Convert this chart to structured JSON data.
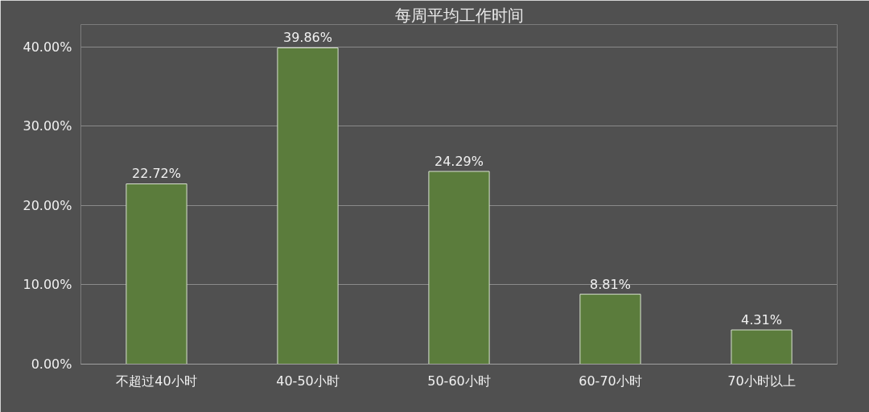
{
  "chart_data": {
    "type": "bar",
    "title": "每周平均工作时间",
    "categories": [
      "不超过40小时",
      "40-50小时",
      "50-60小时",
      "60-70小时",
      "70小时以上"
    ],
    "values": [
      22.72,
      39.86,
      24.29,
      8.81,
      4.31
    ],
    "value_labels": [
      "22.72%",
      "39.86%",
      "24.29%",
      "8.81%",
      "4.31%"
    ],
    "color": "#5b7c3c",
    "ylim": [
      0,
      40
    ],
    "yticks": [
      {
        "value": 0,
        "label": "0.00%"
      },
      {
        "value": 10,
        "label": "10.00%"
      },
      {
        "value": 20,
        "label": "20.00%"
      },
      {
        "value": 30,
        "label": "30.00%"
      },
      {
        "value": 40,
        "label": "40.00%"
      }
    ],
    "grid": "y"
  }
}
